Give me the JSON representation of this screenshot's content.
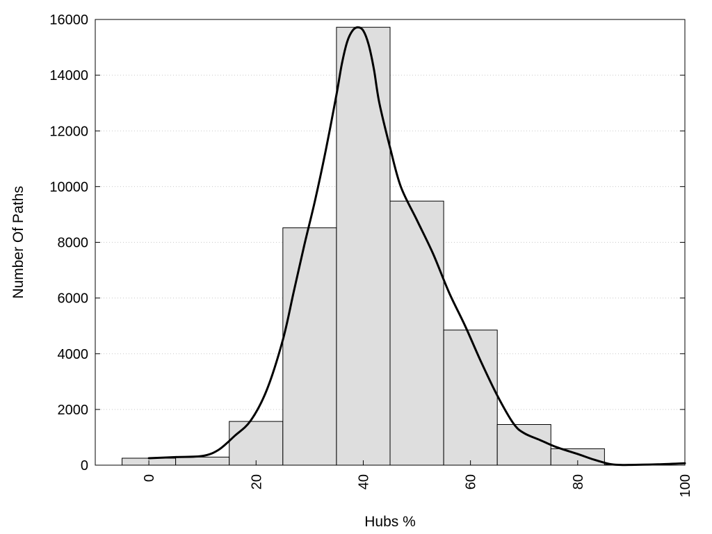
{
  "chart_data": {
    "type": "bar",
    "title": "",
    "xlabel": "Hubs %",
    "ylabel": "Number Of Paths",
    "xlim": [
      -10,
      100
    ],
    "ylim": [
      0,
      16000
    ],
    "x_ticks": [
      "0",
      "20",
      "40",
      "60",
      "80",
      "100"
    ],
    "y_ticks": [
      "0",
      "2000",
      "4000",
      "6000",
      "8000",
      "10000",
      "12000",
      "14000",
      "16000"
    ],
    "grid": "horizontal-dotted",
    "bin_width": 10,
    "bins": [
      {
        "center": 0,
        "value": 250
      },
      {
        "center": 10,
        "value": 290
      },
      {
        "center": 20,
        "value": 1570
      },
      {
        "center": 30,
        "value": 8520
      },
      {
        "center": 40,
        "value": 15720
      },
      {
        "center": 50,
        "value": 9480
      },
      {
        "center": 60,
        "value": 4850
      },
      {
        "center": 70,
        "value": 1460
      },
      {
        "center": 80,
        "value": 590
      },
      {
        "center": 90,
        "value": 20
      }
    ],
    "curve": {
      "x": [
        0,
        5,
        10,
        13,
        16,
        19,
        22,
        25,
        27,
        29,
        31,
        33,
        35,
        36,
        37,
        38,
        39,
        40,
        41,
        42,
        43,
        45,
        47,
        50,
        53,
        56,
        59,
        62,
        65,
        68,
        70,
        73,
        76,
        80,
        83,
        86,
        88,
        90,
        95,
        100
      ],
      "y": [
        250,
        290,
        330,
        550,
        1050,
        1600,
        2700,
        4500,
        6200,
        7900,
        9500,
        11300,
        13300,
        14400,
        15200,
        15600,
        15720,
        15600,
        15100,
        14200,
        13000,
        11400,
        10000,
        8800,
        7600,
        6200,
        5000,
        3700,
        2500,
        1500,
        1150,
        900,
        650,
        400,
        200,
        40,
        10,
        10,
        30,
        70
      ]
    }
  }
}
